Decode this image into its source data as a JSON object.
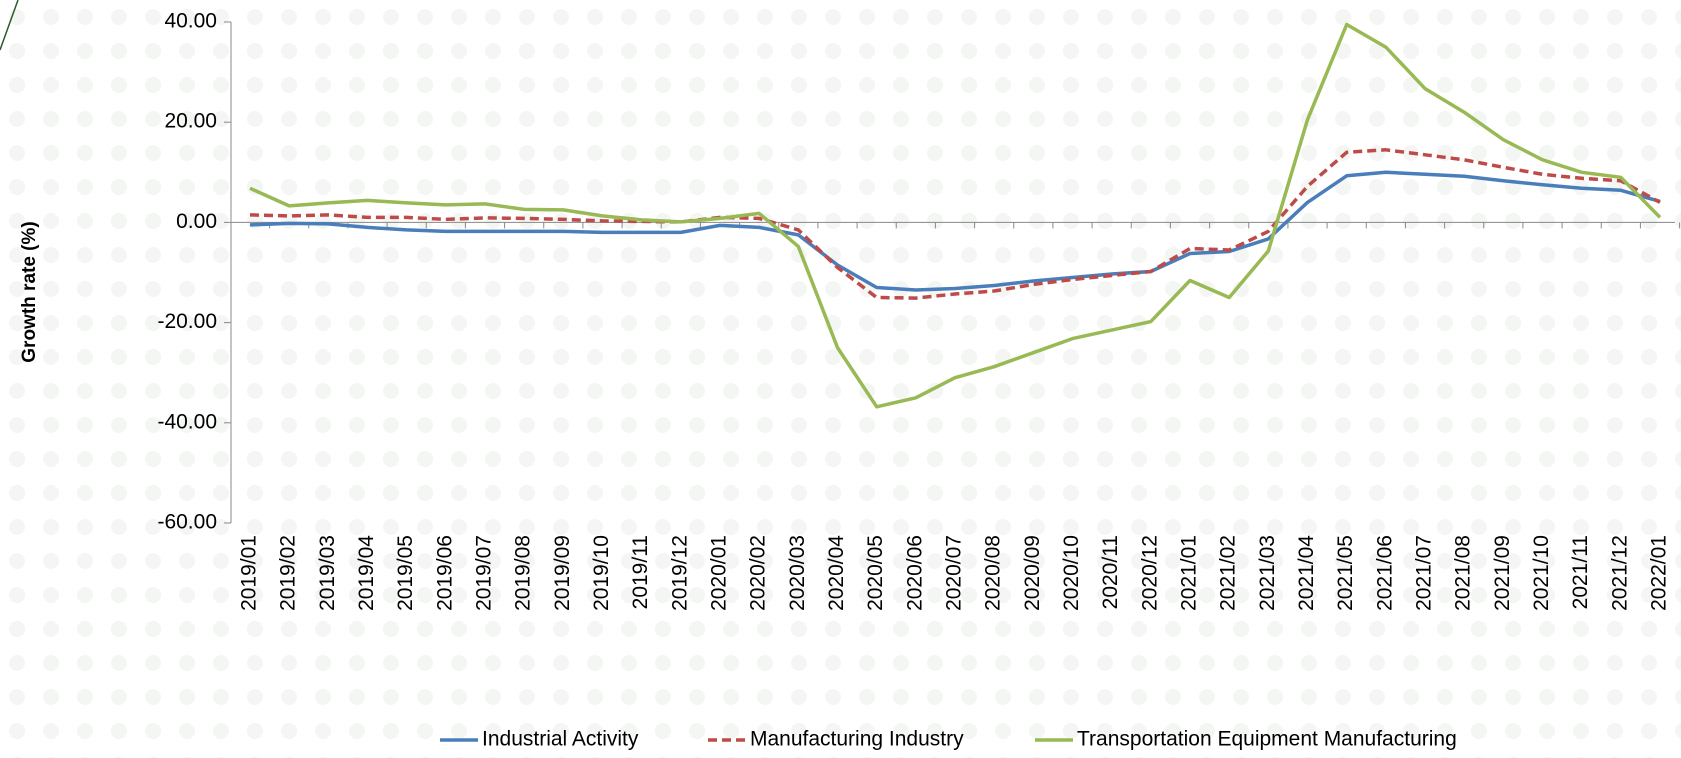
{
  "chart_data": {
    "type": "line",
    "y_axis_label": "Growth rate (%)",
    "categories": [
      "2019/01",
      "2019/02",
      "2019/03",
      "2019/04",
      "2019/05",
      "2019/06",
      "2019/07",
      "2019/08",
      "2019/09",
      "2019/10",
      "2019/11",
      "2019/12",
      "2020/01",
      "2020/02",
      "2020/03",
      "2020/04",
      "2020/05",
      "2020/06",
      "2020/07",
      "2020/08",
      "2020/09",
      "2020/10",
      "2020/11",
      "2020/12",
      "2021/01",
      "2021/02",
      "2021/03",
      "2021/04",
      "2021/05",
      "2021/06",
      "2021/07",
      "2021/08",
      "2021/09",
      "2021/10",
      "2021/11",
      "2021/12",
      "2022/01"
    ],
    "series": [
      {
        "name": "Industrial Activity",
        "color": "#4a7ebb",
        "dash": false,
        "values": [
          -0.5,
          -0.2,
          -0.3,
          -1.0,
          -1.5,
          -1.8,
          -1.8,
          -1.8,
          -1.8,
          -2.0,
          -2.0,
          -2.0,
          -0.6,
          -1.0,
          -2.5,
          -8.5,
          -13.0,
          -13.5,
          -13.2,
          -12.6,
          -11.7,
          -11.0,
          -10.3,
          -9.8,
          -6.2,
          -5.8,
          -3.3,
          4.0,
          9.3,
          10.0,
          9.6,
          9.2,
          8.3,
          7.5,
          6.8,
          6.4,
          4.2
        ]
      },
      {
        "name": "Manufacturing Industry",
        "color": "#be4b48",
        "dash": true,
        "values": [
          1.5,
          1.3,
          1.5,
          1.0,
          1.0,
          0.6,
          0.9,
          0.8,
          0.6,
          0.3,
          0.2,
          0.1,
          1.0,
          0.8,
          -1.5,
          -9.0,
          -15.0,
          -15.1,
          -14.3,
          -13.7,
          -12.4,
          -11.4,
          -10.6,
          -9.8,
          -5.2,
          -5.5,
          -1.8,
          7.2,
          14.0,
          14.5,
          13.5,
          12.5,
          11.0,
          9.6,
          8.8,
          8.3,
          4.0
        ]
      },
      {
        "name": "Transportation Equipment Manufacturing",
        "color": "#98b954",
        "dash": false,
        "values": [
          6.8,
          3.3,
          3.9,
          4.4,
          3.9,
          3.5,
          3.7,
          2.6,
          2.5,
          1.3,
          0.5,
          0.1,
          0.8,
          1.8,
          -4.8,
          -25.0,
          -36.8,
          -35.0,
          -31.0,
          -28.8,
          -26.0,
          -23.2,
          -21.5,
          -19.8,
          -11.6,
          -15.0,
          -5.7,
          20.5,
          39.5,
          35.0,
          26.7,
          22.0,
          16.5,
          12.5,
          10.0,
          9.0,
          1.0
        ]
      }
    ],
    "ylim": [
      -60,
      40
    ],
    "yticks": [
      {
        "value": -60,
        "label": "-60.00"
      },
      {
        "value": -40,
        "label": "-40.00"
      },
      {
        "value": -20,
        "label": "-20.00"
      },
      {
        "value": 0,
        "label": "0.00"
      },
      {
        "value": 20,
        "label": "20.00"
      },
      {
        "value": 40,
        "label": "40.00"
      }
    ],
    "legend": "bottom"
  }
}
